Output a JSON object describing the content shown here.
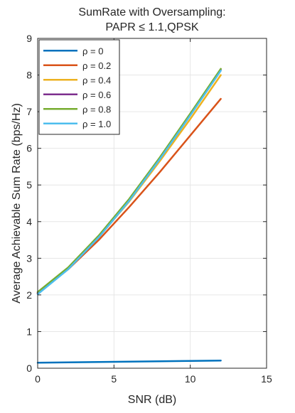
{
  "chart_data": {
    "type": "line",
    "title_lines": [
      "SumRate with Oversampling:",
      "PAPR ≤ 1.1,QPSK"
    ],
    "xlabel": "SNR (dB)",
    "ylabel": "Average Achievable Sum Rate (bps/Hz)",
    "xlim": [
      0,
      15
    ],
    "ylim": [
      0,
      9
    ],
    "xticks": [
      0,
      5,
      10,
      15
    ],
    "yticks": [
      0,
      1,
      2,
      3,
      4,
      5,
      6,
      7,
      8,
      9
    ],
    "grid": true,
    "legend_position": "top-left",
    "series": [
      {
        "name": "ρ = 0",
        "color": "#0072BD",
        "x": [
          0,
          2,
          4,
          6,
          8,
          10,
          12
        ],
        "y": [
          0.15,
          0.16,
          0.17,
          0.18,
          0.19,
          0.2,
          0.21
        ]
      },
      {
        "name": "ρ = 0.2",
        "color": "#D95319",
        "x": [
          0,
          2,
          4,
          6,
          8,
          10,
          12
        ],
        "y": [
          2.05,
          2.7,
          3.5,
          4.4,
          5.35,
          6.35,
          7.35
        ]
      },
      {
        "name": "ρ = 0.4",
        "color": "#EDB120",
        "x": [
          0,
          2,
          4,
          6,
          8,
          10,
          12
        ],
        "y": [
          2.05,
          2.72,
          3.58,
          4.55,
          5.65,
          6.8,
          8.0
        ]
      },
      {
        "name": "ρ = 0.6",
        "color": "#7E2F8E",
        "x": [
          0,
          2,
          4,
          6,
          8,
          10,
          12
        ],
        "y": [
          2.05,
          2.73,
          3.6,
          4.6,
          5.73,
          6.93,
          8.15
        ]
      },
      {
        "name": "ρ = 0.8",
        "color": "#77AC30",
        "x": [
          0,
          2,
          4,
          6,
          8,
          10,
          12
        ],
        "y": [
          2.08,
          2.75,
          3.62,
          4.62,
          5.75,
          6.95,
          8.17
        ]
      },
      {
        "name": "ρ = 1.0",
        "color": "#4DBEEE",
        "x": [
          0,
          2,
          4,
          6,
          8,
          10,
          12
        ],
        "y": [
          2.02,
          2.7,
          3.57,
          4.57,
          5.7,
          6.9,
          8.12
        ]
      }
    ]
  }
}
